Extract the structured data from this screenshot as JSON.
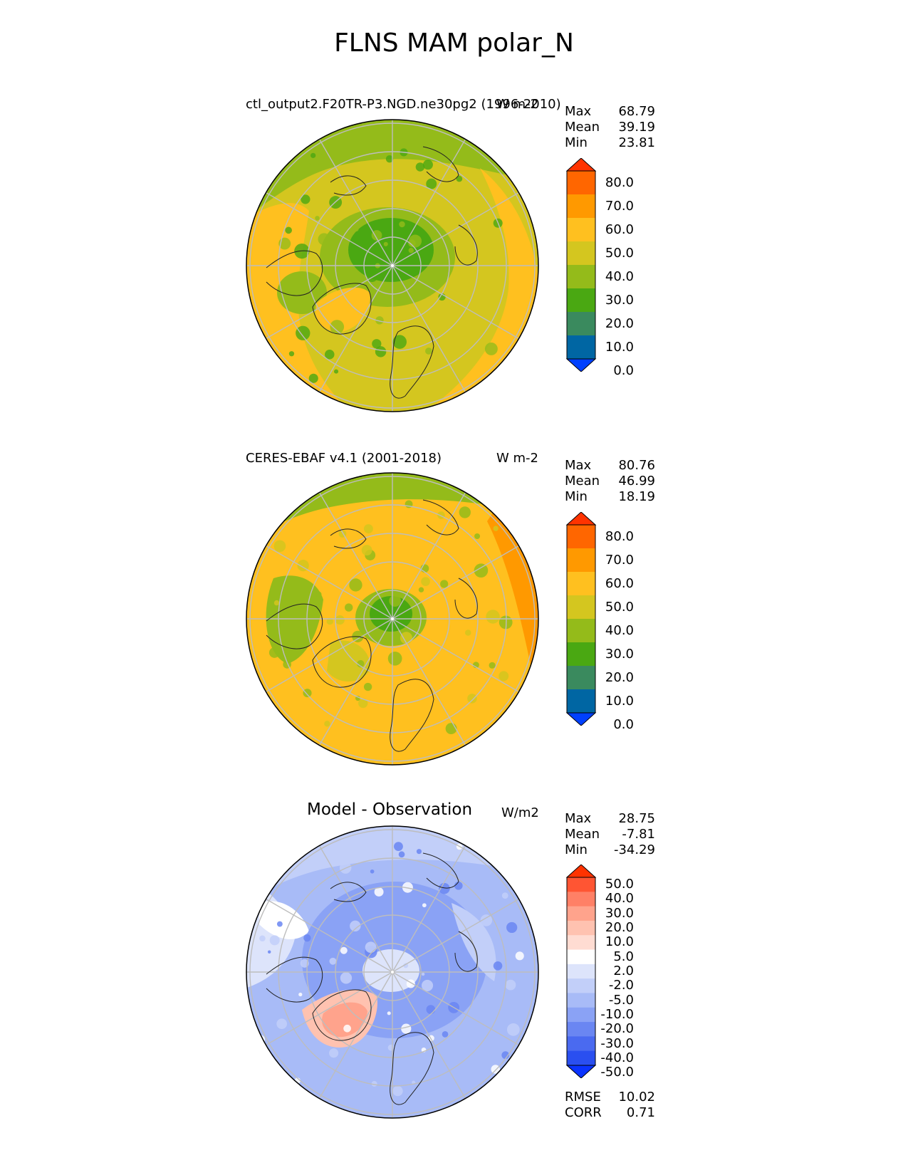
{
  "figure": {
    "title": "FLNS MAM polar_N"
  },
  "panels": [
    {
      "title": "ctl_output2.F20TR-P3.NGD.ne30pg2 (1996-2010)",
      "units": "W m-2",
      "stats": {
        "max_label": "Max",
        "max": "68.79",
        "mean_label": "Mean",
        "mean": "39.19",
        "min_label": "Min",
        "min": "23.81"
      },
      "colorbar": {
        "levels": [
          "80.0",
          "70.0",
          "60.0",
          "50.0",
          "40.0",
          "30.0",
          "20.0",
          "10.0",
          "0.0"
        ],
        "colors": [
          "#ff3300",
          "#ff6600",
          "#ff9900",
          "#ffc01f",
          "#d4c61f",
          "#94bb1a",
          "#4aa812",
          "#3a8a5e",
          "#0066a3",
          "#0040ff"
        ]
      }
    },
    {
      "title": "CERES-EBAF v4.1 (2001-2018)",
      "units": "W m-2",
      "stats": {
        "max_label": "Max",
        "max": "80.76",
        "mean_label": "Mean",
        "mean": "46.99",
        "min_label": "Min",
        "min": "18.19"
      },
      "colorbar": {
        "levels": [
          "80.0",
          "70.0",
          "60.0",
          "50.0",
          "40.0",
          "30.0",
          "20.0",
          "10.0",
          "0.0"
        ],
        "colors": [
          "#ff3300",
          "#ff6600",
          "#ff9900",
          "#ffc01f",
          "#d4c61f",
          "#94bb1a",
          "#4aa812",
          "#3a8a5e",
          "#0066a3",
          "#0040ff"
        ]
      }
    },
    {
      "title": "Model - Observation",
      "units": "W/m2",
      "stats": {
        "max_label": "Max",
        "max": "28.75",
        "mean_label": "Mean",
        "mean": "-7.81",
        "min_label": "Min",
        "min": "-34.29"
      },
      "colorbar": {
        "levels": [
          "50.0",
          "40.0",
          "30.0",
          "20.0",
          "10.0",
          "5.0",
          "2.0",
          "-2.0",
          "-5.0",
          "-10.0",
          "-20.0",
          "-30.0",
          "-40.0",
          "-50.0"
        ],
        "colors": [
          "#ff3300",
          "#ff5533",
          "#ff8066",
          "#ffa38c",
          "#ffc2b0",
          "#ffdcd2",
          "#ffffff",
          "#dde4fb",
          "#c2cff9",
          "#a8bbf7",
          "#8aa2f5",
          "#6a86f2",
          "#4a6af0",
          "#2a4ff0",
          "#0a33ff"
        ]
      },
      "summary": {
        "rmse_label": "RMSE",
        "rmse": "10.02",
        "corr_label": "CORR",
        "corr": "0.71"
      }
    }
  ]
}
